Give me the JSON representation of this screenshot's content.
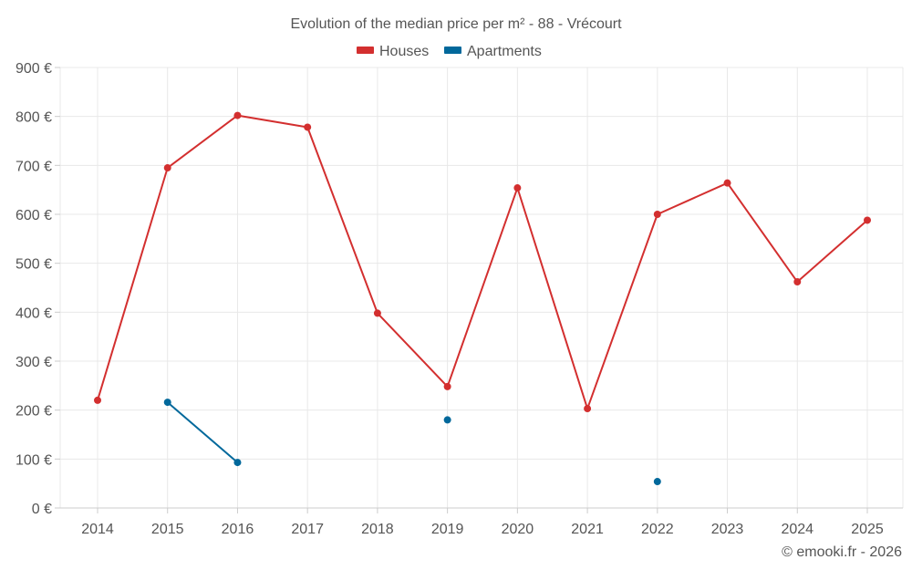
{
  "chart_data": {
    "type": "line",
    "title": "Evolution of the median price per m² - 88 - Vrécourt",
    "categories": [
      "2014",
      "2015",
      "2016",
      "2017",
      "2018",
      "2019",
      "2020",
      "2021",
      "2022",
      "2023",
      "2024",
      "2025"
    ],
    "yticks": [
      "0 €",
      "100 €",
      "200 €",
      "300 €",
      "400 €",
      "500 €",
      "600 €",
      "700 €",
      "800 €",
      "900 €"
    ],
    "ylim": [
      0,
      900
    ],
    "series": [
      {
        "name": "Houses",
        "color": "#d32f2f",
        "values": [
          220,
          695,
          802,
          778,
          398,
          248,
          654,
          203,
          600,
          664,
          462,
          588
        ]
      },
      {
        "name": "Apartments",
        "color": "#01689b",
        "values": [
          null,
          216,
          93,
          null,
          null,
          180,
          null,
          null,
          54,
          null,
          null,
          null
        ]
      }
    ],
    "credit": "© emooki.fr - 2026"
  }
}
